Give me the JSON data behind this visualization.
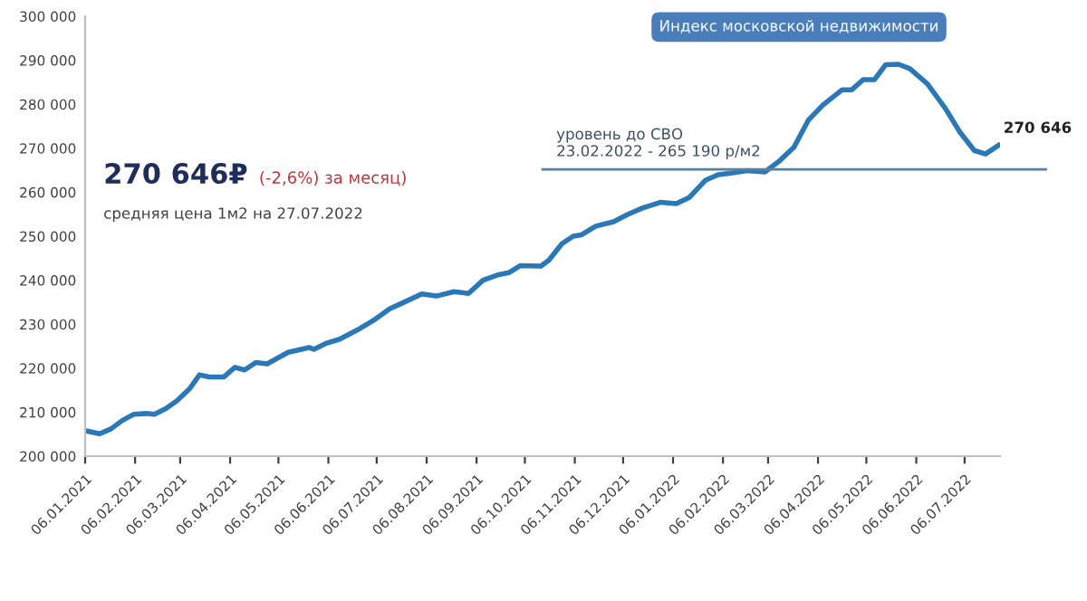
{
  "chart_data": {
    "type": "line",
    "title": "Индекс московской недвижимости",
    "x": [
      "2021-01-06",
      "2021-01-15",
      "2021-01-22",
      "2021-01-29",
      "2021-02-05",
      "2021-02-13",
      "2021-02-18",
      "2021-02-25",
      "2021-03-04",
      "2021-03-12",
      "2021-03-18",
      "2021-03-24",
      "2021-04-02",
      "2021-04-09",
      "2021-04-15",
      "2021-04-22",
      "2021-04-29",
      "2021-05-12",
      "2021-05-25",
      "2021-05-28",
      "2021-06-05",
      "2021-06-13",
      "2021-06-24",
      "2021-07-05",
      "2021-07-14",
      "2021-07-23",
      "2021-08-03",
      "2021-08-12",
      "2021-08-23",
      "2021-09-01",
      "2021-09-10",
      "2021-09-19",
      "2021-09-26",
      "2021-10-03",
      "2021-10-16",
      "2021-10-21",
      "2021-10-29",
      "2021-11-05",
      "2021-11-10",
      "2021-11-19",
      "2021-11-30",
      "2021-12-09",
      "2021-12-18",
      "2021-12-29",
      "2022-01-08",
      "2022-01-16",
      "2022-01-26",
      "2022-02-03",
      "2022-02-12",
      "2022-02-21",
      "2022-03-04",
      "2022-03-13",
      "2022-03-22",
      "2022-03-31",
      "2022-04-09",
      "2022-04-21",
      "2022-04-27",
      "2022-05-04",
      "2022-05-11",
      "2022-05-18",
      "2022-05-26",
      "2022-06-02",
      "2022-06-13",
      "2022-06-24",
      "2022-07-03",
      "2022-07-12",
      "2022-07-19",
      "2022-07-27"
    ],
    "series": [
      {
        "color": "#2a78b8",
        "values": [
          205800,
          205100,
          206200,
          208100,
          209500,
          209700,
          209500,
          210800,
          212600,
          215400,
          218500,
          218000,
          218000,
          220200,
          219600,
          221300,
          221000,
          223600,
          224700,
          224300,
          225700,
          226600,
          228700,
          231100,
          233500,
          235000,
          236900,
          236400,
          237400,
          237000,
          240000,
          241200,
          241700,
          243300,
          243200,
          244600,
          248300,
          250000,
          250300,
          252300,
          253300,
          255000,
          256400,
          257700,
          257400,
          258800,
          262700,
          264000,
          264400,
          264900,
          264600,
          267100,
          270200,
          276400,
          279800,
          283300,
          283300,
          285600,
          285600,
          289000,
          289100,
          288100,
          284600,
          279100,
          273700,
          269500,
          268700,
          270646
        ]
      }
    ],
    "xlim": [
      "2021-01-06",
      "2022-07-28"
    ],
    "xticks": [
      {
        "value": "2021-01-06",
        "label": "06.01.2021"
      },
      {
        "value": "2021-02-06",
        "label": "06.02.2021"
      },
      {
        "value": "2021-03-06",
        "label": "06.03.2021"
      },
      {
        "value": "2021-04-06",
        "label": "06.04.2021"
      },
      {
        "value": "2021-05-06",
        "label": "06.05.2021"
      },
      {
        "value": "2021-06-06",
        "label": "06.06.2021"
      },
      {
        "value": "2021-07-06",
        "label": "06.07.2021"
      },
      {
        "value": "2021-08-06",
        "label": "06.08.2021"
      },
      {
        "value": "2021-09-06",
        "label": "06.09.2021"
      },
      {
        "value": "2021-10-06",
        "label": "06.10.2021"
      },
      {
        "value": "2021-11-06",
        "label": "06.11.2021"
      },
      {
        "value": "2021-12-06",
        "label": "06.12.2021"
      },
      {
        "value": "2022-01-06",
        "label": "06.01.2022"
      },
      {
        "value": "2022-02-06",
        "label": "06.02.2022"
      },
      {
        "value": "2022-03-06",
        "label": "06.03.2022"
      },
      {
        "value": "2022-04-06",
        "label": "06.04.2022"
      },
      {
        "value": "2022-05-06",
        "label": "06.05.2022"
      },
      {
        "value": "2022-06-06",
        "label": "06.06.2022"
      },
      {
        "value": "2022-07-06",
        "label": "06.07.2022"
      }
    ],
    "ylim": [
      200000,
      300000
    ],
    "yticks": [
      {
        "value": 200000,
        "label": "200 000"
      },
      {
        "value": 210000,
        "label": "210 000"
      },
      {
        "value": 220000,
        "label": "220 000"
      },
      {
        "value": 230000,
        "label": "230 000"
      },
      {
        "value": 240000,
        "label": "240 000"
      },
      {
        "value": 250000,
        "label": "250 000"
      },
      {
        "value": 260000,
        "label": "260 000"
      },
      {
        "value": 270000,
        "label": "270 000"
      },
      {
        "value": 280000,
        "label": "280 000"
      },
      {
        "value": 290000,
        "label": "290 000"
      },
      {
        "value": 300000,
        "label": "300 000"
      }
    ],
    "ref_lines": [
      {
        "axis": "y",
        "value": 265190,
        "label": "уровень до СВО\n23.02.2022 - 265 190 р/м2",
        "color": "#5d7f9e"
      }
    ],
    "annotations": [
      "270 646₽",
      "(-2,6%) за месяц)",
      "средняя цена 1м2 на 27.07.2022",
      {
        "text": "270 646",
        "x": "2022-07-27",
        "y": 270646
      }
    ],
    "grid": false,
    "legend": false,
    "marker": "none",
    "line_style": "solid"
  }
}
